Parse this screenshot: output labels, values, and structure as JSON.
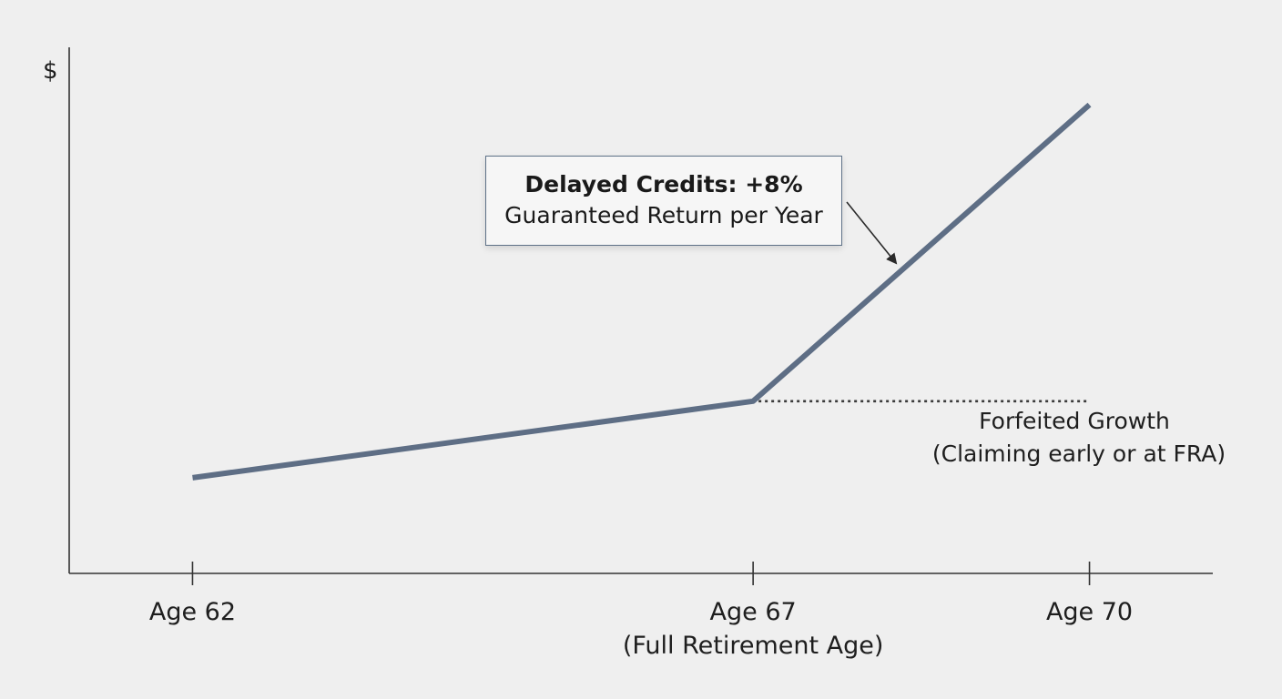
{
  "chart_data": {
    "type": "line",
    "y_axis_label": "$",
    "x_ticks": [
      {
        "label": "Age 62",
        "sublabel": ""
      },
      {
        "label": "Age 67",
        "sublabel": "(Full Retirement Age)"
      },
      {
        "label": "Age 70",
        "sublabel": ""
      }
    ],
    "series": [
      {
        "x": [
          62,
          67,
          70
        ],
        "y": [
          1.0,
          1.4,
          2.95
        ],
        "color": "#5e6e85"
      }
    ],
    "reference_line": {
      "from_x": 67,
      "to_x": 70,
      "y": 1.4,
      "style": "dotted",
      "color": "#3a3a3a"
    },
    "annotations": {
      "callout_title": "Delayed Credits: +8%",
      "callout_subtitle": "Guaranteed Return per Year",
      "forfeited_line1": "Forfeited Growth",
      "forfeited_line2": "(Claiming early or at FRA)"
    },
    "xlim": [
      60.9,
      71.1
    ],
    "ylim": [
      0.5,
      3.25
    ],
    "grid": false,
    "legend": "none"
  }
}
